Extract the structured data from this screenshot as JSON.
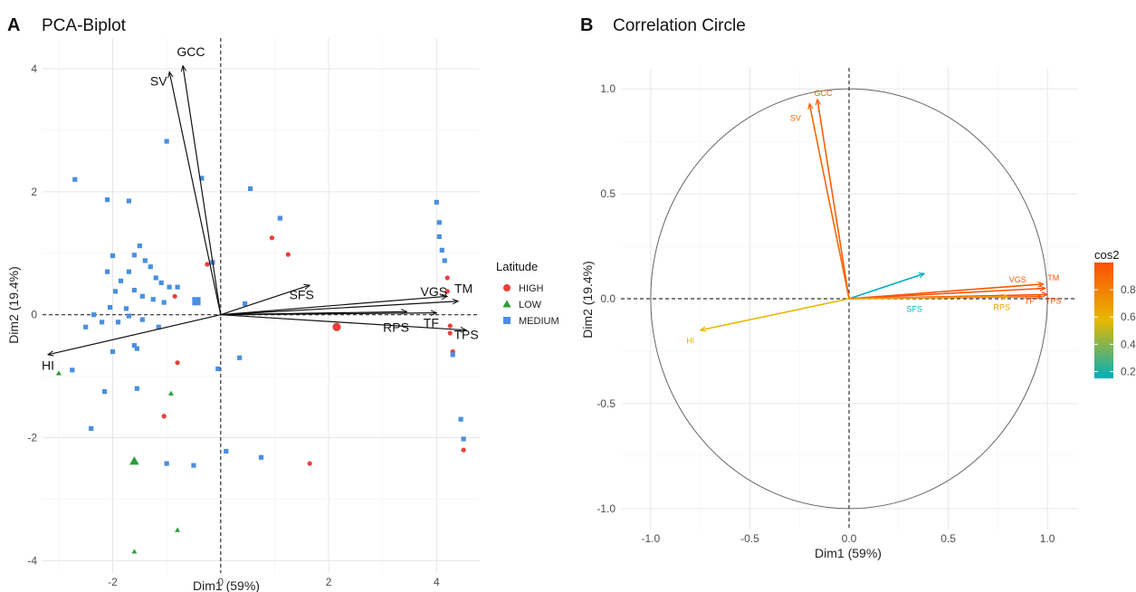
{
  "chart_data": [
    {
      "type": "scatter",
      "panel_letter": "A",
      "title": "PCA-Biplot",
      "xlabel": "Dim1 (59%)",
      "ylabel": "Dim2 (19.4%)",
      "xlim": [
        -3.3,
        4.8
      ],
      "ylim": [
        -4.2,
        4.5
      ],
      "xticks": [
        -2,
        0,
        2,
        4
      ],
      "yticks": [
        -4,
        -2,
        0,
        2,
        4
      ],
      "grid": true,
      "reference_lines": {
        "x": 0,
        "y": 0,
        "style": "dashed"
      },
      "legend": {
        "title": "Latitude",
        "placement": "right",
        "items": [
          {
            "label": "HIGH",
            "color": "#e8403a",
            "shape": "circle"
          },
          {
            "label": "LOW",
            "color": "#2e9e3a",
            "shape": "triangle"
          },
          {
            "label": "MEDIUM",
            "color": "#4a8fe0",
            "shape": "square"
          }
        ]
      },
      "series": [
        {
          "name": "HIGH",
          "color": "#e8403a",
          "shape": "circle",
          "points": [
            [
              0.95,
              1.25
            ],
            [
              1.25,
              0.98
            ],
            [
              -0.25,
              0.82
            ],
            [
              -0.85,
              0.3
            ],
            [
              -0.8,
              -0.78
            ],
            [
              -1.05,
              -1.65
            ],
            [
              2.15,
              -0.2
            ],
            [
              1.65,
              -2.42
            ],
            [
              4.2,
              0.6
            ],
            [
              4.2,
              0.38
            ],
            [
              4.25,
              -0.18
            ],
            [
              4.25,
              -0.3
            ],
            [
              4.3,
              -0.6
            ],
            [
              4.5,
              -2.2
            ]
          ],
          "centroid": [
            2.15,
            -0.2
          ]
        },
        {
          "name": "LOW",
          "color": "#2e9e3a",
          "shape": "triangle",
          "points": [
            [
              -3.0,
              -0.95
            ],
            [
              -0.92,
              -1.28
            ],
            [
              -1.6,
              -3.85
            ],
            [
              -0.8,
              -3.5
            ]
          ],
          "centroid": [
            -1.6,
            -2.38
          ]
        },
        {
          "name": "MEDIUM",
          "color": "#4a8fe0",
          "shape": "square",
          "points": [
            [
              -2.7,
              2.2
            ],
            [
              -2.1,
              1.87
            ],
            [
              -1.7,
              1.85
            ],
            [
              -1.0,
              2.82
            ],
            [
              -0.35,
              2.22
            ],
            [
              0.55,
              2.05
            ],
            [
              1.1,
              1.57
            ],
            [
              -2.1,
              0.7
            ],
            [
              -2.0,
              0.96
            ],
            [
              -1.6,
              0.97
            ],
            [
              -1.5,
              1.12
            ],
            [
              -1.4,
              0.88
            ],
            [
              -1.3,
              0.78
            ],
            [
              -1.2,
              0.6
            ],
            [
              -1.1,
              0.52
            ],
            [
              -0.95,
              0.45
            ],
            [
              -0.8,
              0.45
            ],
            [
              -1.7,
              0.7
            ],
            [
              -1.85,
              0.55
            ],
            [
              -1.95,
              0.38
            ],
            [
              -1.6,
              0.4
            ],
            [
              -1.45,
              0.3
            ],
            [
              -1.25,
              0.25
            ],
            [
              -1.05,
              0.2
            ],
            [
              -1.75,
              0.1
            ],
            [
              -2.05,
              0.12
            ],
            [
              -2.35,
              0.0
            ],
            [
              -1.7,
              -0.02
            ],
            [
              -2.2,
              -0.12
            ],
            [
              -1.9,
              -0.12
            ],
            [
              -1.45,
              -0.08
            ],
            [
              -1.15,
              -0.2
            ],
            [
              -2.5,
              -0.2
            ],
            [
              -2.0,
              -0.6
            ],
            [
              -1.6,
              -0.5
            ],
            [
              -1.55,
              -0.55
            ],
            [
              -2.75,
              -0.9
            ],
            [
              -2.15,
              -1.25
            ],
            [
              -1.55,
              -1.2
            ],
            [
              -2.4,
              -1.85
            ],
            [
              -1.0,
              -2.42
            ],
            [
              -0.5,
              -2.45
            ],
            [
              0.1,
              -2.22
            ],
            [
              0.75,
              -2.32
            ],
            [
              -0.05,
              -0.88
            ],
            [
              0.35,
              -0.7
            ],
            [
              0.45,
              0.18
            ],
            [
              -0.15,
              0.85
            ],
            [
              4.0,
              1.83
            ],
            [
              4.05,
              1.5
            ],
            [
              4.05,
              1.27
            ],
            [
              4.1,
              1.05
            ],
            [
              4.15,
              0.88
            ],
            [
              4.3,
              -0.65
            ],
            [
              4.45,
              -1.7
            ],
            [
              4.5,
              -2.02
            ]
          ],
          "centroid": [
            -0.45,
            0.22
          ]
        }
      ],
      "arrows": [
        {
          "name": "GCC",
          "x": -0.7,
          "y": 4.05
        },
        {
          "name": "SV",
          "x": -0.95,
          "y": 3.95
        },
        {
          "name": "SFS",
          "x": 1.65,
          "y": 0.48
        },
        {
          "name": "VGS",
          "x": 4.2,
          "y": 0.3
        },
        {
          "name": "TM",
          "x": 4.4,
          "y": 0.22
        },
        {
          "name": "TF",
          "x": 4.0,
          "y": 0.03
        },
        {
          "name": "RPS",
          "x": 3.45,
          "y": 0.05
        },
        {
          "name": "TPS",
          "x": 4.55,
          "y": -0.25
        },
        {
          "name": "HI",
          "x": -3.2,
          "y": -0.65
        }
      ],
      "arrow_label_positions": {
        "GCC": [
          -0.55,
          4.28
        ],
        "SV": [
          -1.15,
          3.8
        ],
        "SFS": [
          1.5,
          0.33
        ],
        "VGS": [
          3.95,
          0.38
        ],
        "TM": [
          4.5,
          0.43
        ],
        "TF": [
          3.9,
          -0.13
        ],
        "RPS": [
          3.25,
          -0.2
        ],
        "TPS": [
          4.55,
          -0.32
        ],
        "HI": [
          -3.2,
          -0.82
        ]
      }
    },
    {
      "type": "vector",
      "panel_letter": "B",
      "title": "Correlation Circle",
      "xlabel": "Dim1 (59%)",
      "ylabel": "Dim2 (19.4%)",
      "xlim": [
        -1.15,
        1.15
      ],
      "ylim": [
        -1.1,
        1.1
      ],
      "xticks": [
        -1.0,
        -0.5,
        0.0,
        0.5,
        1.0
      ],
      "yticks": [
        -1.0,
        -0.5,
        0.0,
        0.5,
        1.0
      ],
      "xtick_labels": [
        "-1.0",
        "-0.5",
        "0.0",
        "0.5",
        "1.0"
      ],
      "ytick_labels": [
        "-1.0",
        "-0.5",
        "0.0",
        "0.5",
        "1.0"
      ],
      "grid": true,
      "unit_circle": true,
      "reference_lines": {
        "x": 0,
        "y": 0,
        "style": "dashed"
      },
      "color_scale": {
        "title": "cos2",
        "placement": "right",
        "range": [
          0.15,
          1.0
        ],
        "ticks": [
          "0.2",
          "0.4",
          "0.6",
          "0.8"
        ],
        "tick_values": [
          0.2,
          0.4,
          0.6,
          0.8
        ],
        "colors": [
          "#00afbb",
          "#e7b800",
          "#fc4e07"
        ]
      },
      "vectors": [
        {
          "name": "GCC",
          "x": -0.16,
          "y": 0.95,
          "cos2": 0.93
        },
        {
          "name": "SV",
          "x": -0.2,
          "y": 0.93,
          "cos2": 0.9
        },
        {
          "name": "SFS",
          "x": 0.38,
          "y": 0.12,
          "cos2": 0.16
        },
        {
          "name": "VGS",
          "x": 0.98,
          "y": 0.07,
          "cos2": 0.96
        },
        {
          "name": "TM",
          "x": 0.99,
          "y": 0.05,
          "cos2": 0.98
        },
        {
          "name": "TF",
          "x": 0.97,
          "y": 0.01,
          "cos2": 0.94
        },
        {
          "name": "TPS",
          "x": 1.0,
          "y": 0.02,
          "cos2": 0.99
        },
        {
          "name": "RPS",
          "x": 0.8,
          "y": 0.01,
          "cos2": 0.65
        },
        {
          "name": "HI",
          "x": -0.75,
          "y": -0.15,
          "cos2": 0.58
        }
      ],
      "label_positions": {
        "GCC": [
          -0.13,
          0.98
        ],
        "SV": [
          -0.27,
          0.86
        ],
        "SFS": [
          0.33,
          -0.05
        ],
        "VGS": [
          0.85,
          0.09
        ],
        "TM": [
          1.03,
          0.1
        ],
        "TF": [
          0.91,
          -0.01
        ],
        "TPS": [
          1.03,
          -0.01
        ],
        "RPS": [
          0.77,
          -0.04
        ],
        "HI": [
          -0.8,
          -0.2
        ]
      }
    }
  ]
}
